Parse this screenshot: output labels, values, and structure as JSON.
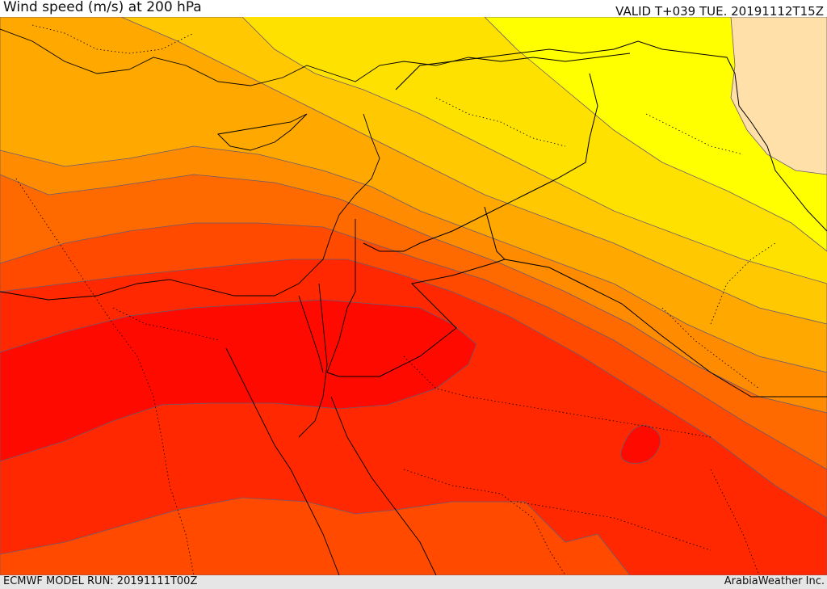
{
  "header": {
    "title": "Wind speed (m/s) at 200 hPa",
    "valid_time": "VALID T+039 TUE. 20191112T15Z"
  },
  "footer": {
    "model_run": "ECMWF MODEL RUN: 20191111T00Z",
    "credit": "ArabiaWeather Inc."
  },
  "map": {
    "field": "wind speed",
    "level": "200 hPa",
    "units": "m/s",
    "colors": {
      "band_1": "#ffe8b0",
      "band_2": "#ffff00",
      "band_3": "#ffe100",
      "band_4": "#ffc800",
      "band_5": "#ffa800",
      "band_6": "#ff8c00",
      "band_7": "#ff6a00",
      "band_8": "#ff4a00",
      "band_9": "#ff2800",
      "band_10": "#ff0a00",
      "contour": "#5a4a80",
      "border": "#000000"
    }
  }
}
